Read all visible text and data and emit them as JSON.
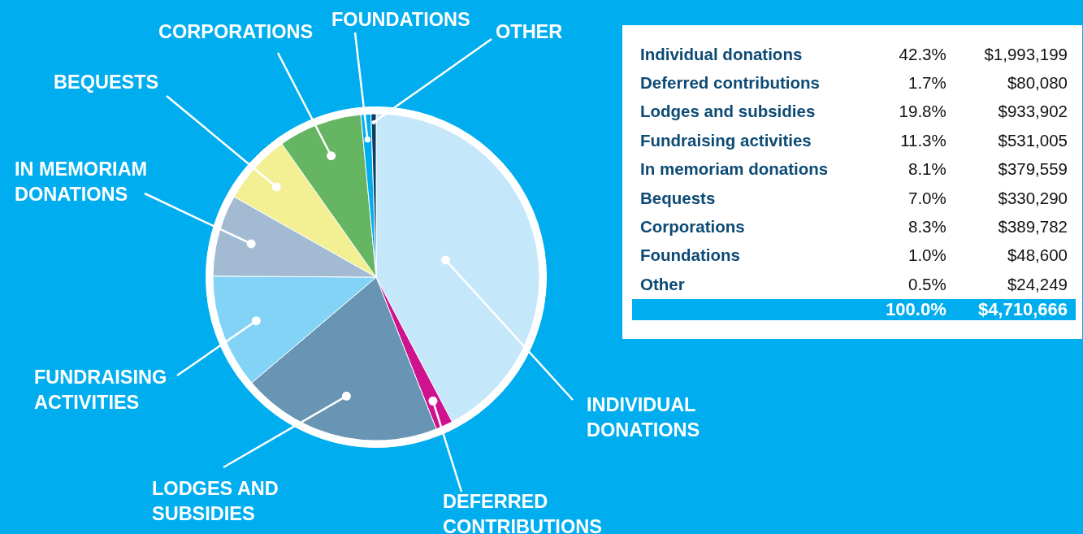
{
  "chart_data": {
    "type": "pie",
    "categories": [
      "INDIVIDUAL DONATIONS",
      "DEFERRED CONTRIBUTIONS",
      "LODGES AND SUBSIDIES",
      "FUNDRAISING ACTIVITIES",
      "IN MEMORIAM DONATIONS",
      "BEQUESTS",
      "CORPORATIONS",
      "FOUNDATIONS",
      "OTHER"
    ],
    "values": [
      42.3,
      1.7,
      19.8,
      11.3,
      8.1,
      7.0,
      8.3,
      1.0,
      0.5
    ],
    "colors": [
      "#c4e8f9",
      "#cf138e",
      "#6795b3",
      "#82d3f6",
      "#a2bbd3",
      "#f3ef93",
      "#66b562",
      "#00aeef",
      "#0b3d63"
    ],
    "annotations": [
      "Individual donations",
      "Deferred contributions",
      "Lodges and subsidies",
      "Fundraising activities",
      "In memoriam donations",
      "Bequests",
      "Corporations",
      "Foundations",
      "Other",
      "42.3%",
      "1.7%",
      "19.8%",
      "11.3%",
      "8.1%",
      "7.0%",
      "8.3%",
      "1.0%",
      "0.5%",
      "$1,993,199",
      "$80,080",
      "$933,902",
      "$531,005",
      "$379,559",
      "$330,290",
      "$389,782",
      "$48,600",
      "$24,249",
      "100.0%",
      "$4,710,666"
    ],
    "legend": false
  }
}
